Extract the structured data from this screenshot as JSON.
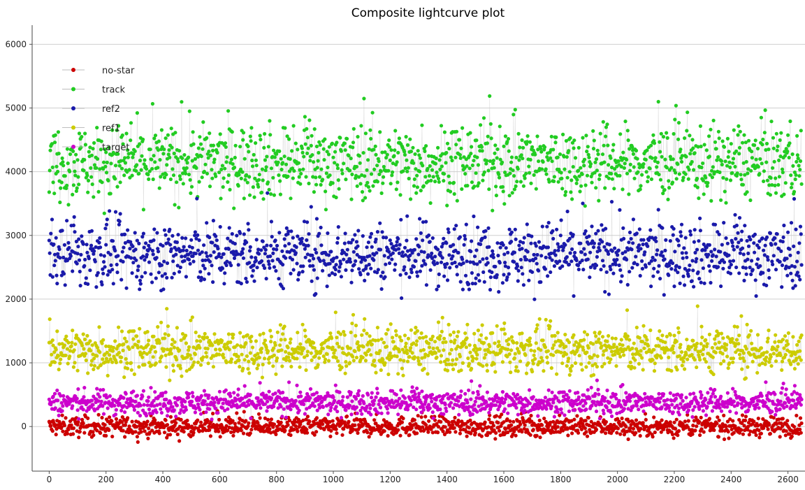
{
  "chart_data": {
    "type": "scatter",
    "title": "Composite lightcurve plot",
    "xlabel": "",
    "ylabel": "",
    "xlim": [
      -60,
      2660
    ],
    "ylim": [
      -700,
      6300
    ],
    "xticks": [
      0,
      200,
      400,
      600,
      800,
      1000,
      1200,
      1400,
      1600,
      1800,
      2000,
      2200,
      2400,
      2600
    ],
    "yticks": [
      0,
      1000,
      2000,
      3000,
      4000,
      5000,
      6000
    ],
    "grid": "horizontal",
    "legend_position": "top-left",
    "connecting_line_color": "#c8c8c8",
    "series": [
      {
        "name": "no-star",
        "color": "#cc0000",
        "mean": 0,
        "spread": 130,
        "n_points": 2650
      },
      {
        "name": "track",
        "color": "#22cc22",
        "mean": 4150,
        "spread": 480,
        "n_points": 2650
      },
      {
        "name": "ref2",
        "color": "#1a1aaa",
        "mean": 2700,
        "spread": 420,
        "n_points": 2650
      },
      {
        "name": "ref1",
        "color": "#cccc00",
        "mean": 1200,
        "spread": 300,
        "n_points": 2650
      },
      {
        "name": "target",
        "color": "#cc00cc",
        "mean": 380,
        "spread": 160,
        "n_points": 2650
      }
    ]
  }
}
